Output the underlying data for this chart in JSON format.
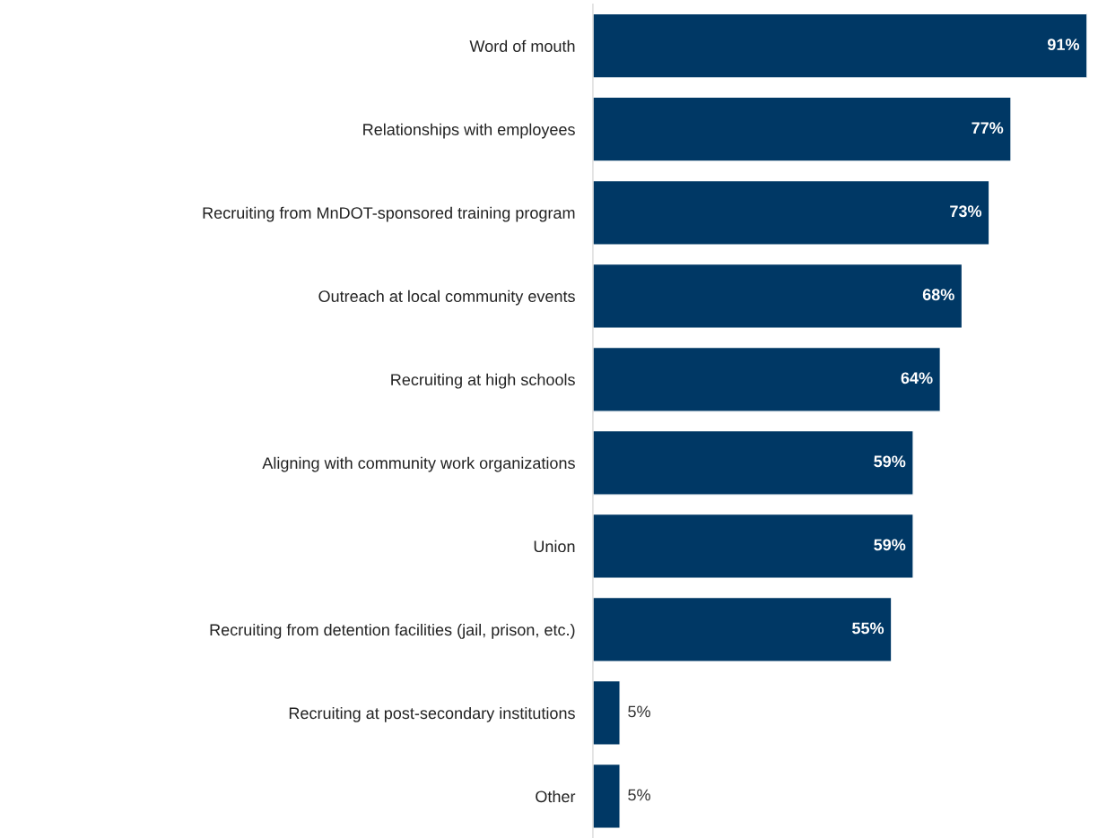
{
  "chart_data": {
    "type": "bar",
    "orientation": "horizontal",
    "categories": [
      "Word of mouth",
      "Relationships with employees",
      "Recruiting from MnDOT-sponsored training program",
      "Outreach at local community events",
      "Recruiting at high schools",
      "Aligning with community work organizations",
      "Union",
      "Recruiting from detention facilities (jail, prison, etc.)",
      "Recruiting at post-secondary institutions",
      "Other"
    ],
    "values": [
      91,
      77,
      73,
      68,
      64,
      59,
      59,
      55,
      5,
      5
    ],
    "value_labels": [
      "91%",
      "77%",
      "73%",
      "68%",
      "64%",
      "59%",
      "59%",
      "55%",
      "5%",
      "5%"
    ],
    "color": "#003865",
    "grid": false,
    "legend": false
  }
}
